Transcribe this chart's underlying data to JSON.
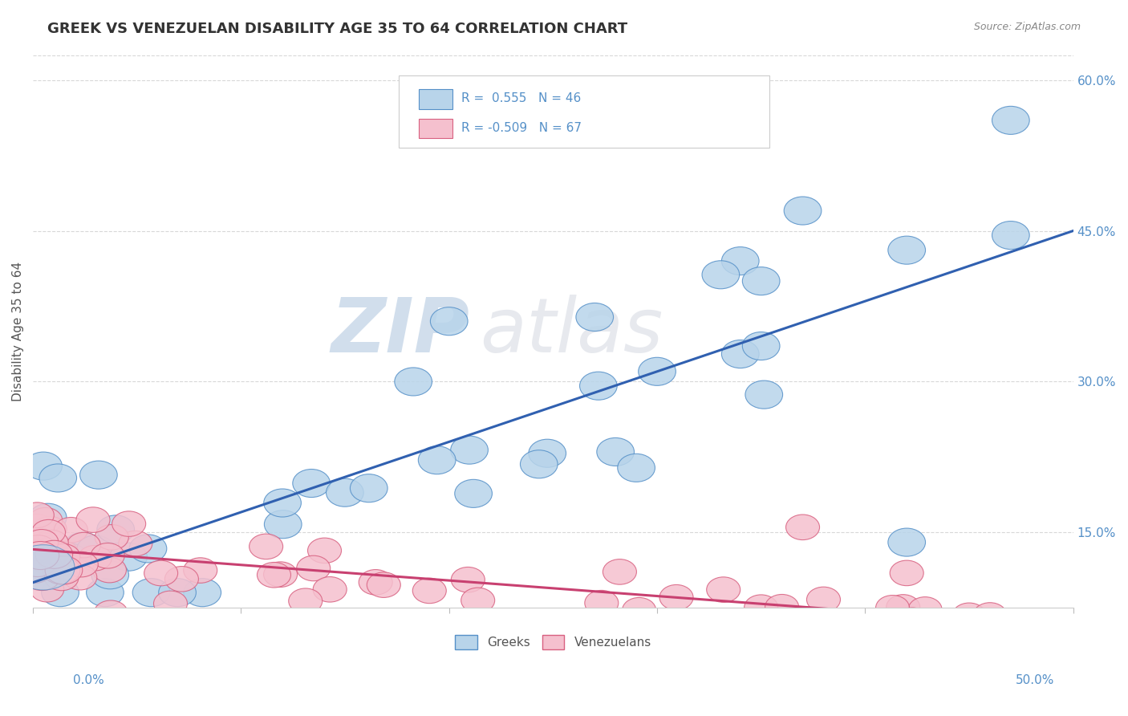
{
  "title": "GREEK VS VENEZUELAN DISABILITY AGE 35 TO 64 CORRELATION CHART",
  "source": "Source: ZipAtlas.com",
  "ylabel": "Disability Age 35 to 64",
  "xlim": [
    0.0,
    0.5
  ],
  "ylim": [
    0.075,
    0.625
  ],
  "y_ticks": [
    0.15,
    0.3,
    0.45,
    0.6
  ],
  "y_tick_labels": [
    "15.0%",
    "30.0%",
    "45.0%",
    "60.0%"
  ],
  "x_ticks": [
    0.0,
    0.1,
    0.2,
    0.3,
    0.4,
    0.5
  ],
  "greek_R": "0.555",
  "greek_N": "46",
  "ven_R": "-0.509",
  "ven_N": "67",
  "greek_fill_color": "#b8d4ea",
  "greek_edge_color": "#5590c8",
  "greek_line_color": "#3060b0",
  "ven_fill_color": "#f5c0ce",
  "ven_edge_color": "#d86080",
  "ven_line_color": "#c84070",
  "watermark_zip_color": "#4a7db5",
  "watermark_atlas_color": "#b0b8c8",
  "background_color": "#ffffff",
  "grid_color": "#d8d8d8",
  "title_color": "#333333",
  "axis_label_color": "#5590c8",
  "ylabel_color": "#555555",
  "greek_intercept": 0.1,
  "greek_slope": 0.7,
  "ven_intercept": 0.133,
  "ven_slope": -0.155
}
